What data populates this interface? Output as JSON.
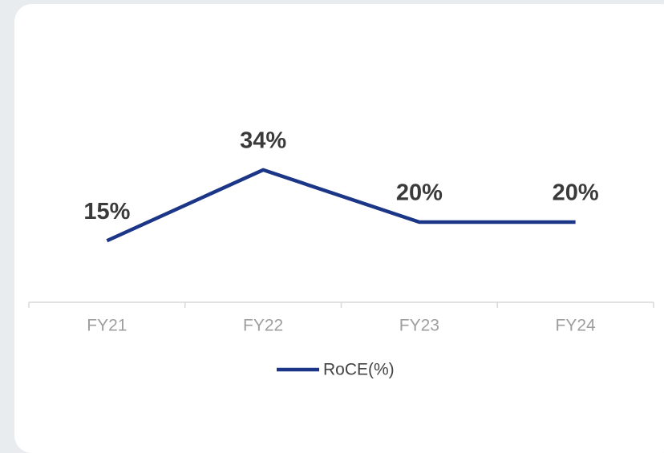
{
  "chart_data": {
    "type": "line",
    "categories": [
      "FY21",
      "FY22",
      "FY23",
      "FY24"
    ],
    "series": [
      {
        "name": "RoCE(%)",
        "color": "#1b3687",
        "values": [
          15,
          34,
          20,
          20
        ],
        "value_labels": [
          "15%",
          "34%",
          "20%",
          "20%"
        ]
      }
    ],
    "ylim": [
      0,
      40
    ],
    "legend": "bottom"
  }
}
